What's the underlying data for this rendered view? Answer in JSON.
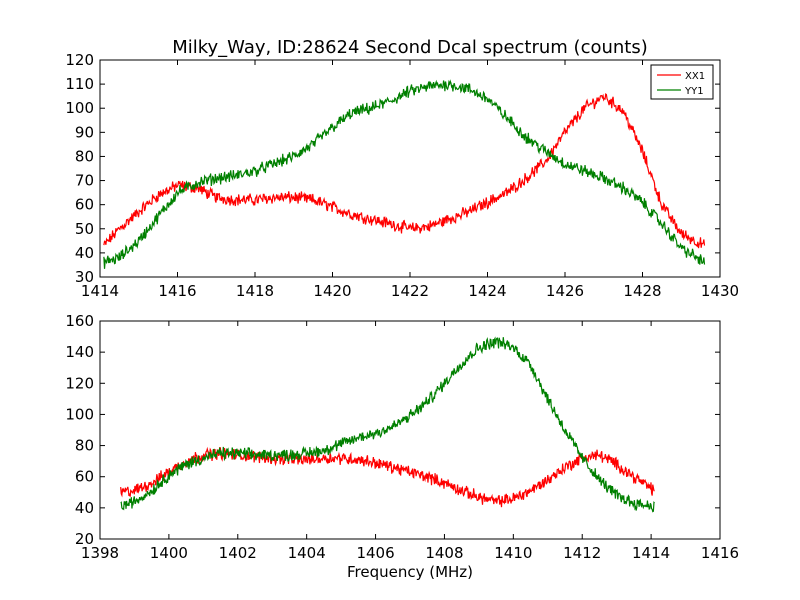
{
  "chart_data": [
    {
      "type": "line",
      "title": "Milky_Way, ID:28624 Second Dcal spectrum (counts)",
      "xlabel": "",
      "ylabel": "",
      "xlim": [
        1414,
        1430
      ],
      "ylim": [
        30,
        120
      ],
      "xticks": [
        1414,
        1416,
        1418,
        1420,
        1422,
        1424,
        1426,
        1428,
        1430
      ],
      "yticks": [
        30,
        40,
        50,
        60,
        70,
        80,
        90,
        100,
        110,
        120
      ],
      "grid": false,
      "legend": "top-right",
      "series": [
        {
          "name": "XX1",
          "color": "#ff0000",
          "x": [
            1414.1,
            1414.5,
            1415.0,
            1415.5,
            1416.0,
            1416.5,
            1417.0,
            1417.5,
            1418.0,
            1418.5,
            1419.0,
            1419.5,
            1420.0,
            1420.5,
            1421.0,
            1421.5,
            1422.0,
            1422.5,
            1423.0,
            1423.5,
            1424.0,
            1424.5,
            1425.0,
            1425.5,
            1426.0,
            1426.5,
            1427.0,
            1427.5,
            1428.0,
            1428.5,
            1429.0,
            1429.6
          ],
          "y": [
            43,
            50,
            57,
            64,
            68,
            67,
            63,
            62,
            62,
            63,
            63,
            62,
            59,
            56,
            54,
            52,
            50,
            51,
            54,
            57,
            61,
            65,
            71,
            78,
            90,
            100,
            105,
            99,
            82,
            60,
            48,
            43
          ]
        },
        {
          "name": "YY1",
          "color": "#008000",
          "x": [
            1414.1,
            1414.5,
            1415.0,
            1415.5,
            1416.0,
            1416.5,
            1417.0,
            1417.5,
            1418.0,
            1418.5,
            1419.0,
            1419.5,
            1420.0,
            1420.5,
            1421.0,
            1421.5,
            1422.0,
            1422.5,
            1423.0,
            1423.5,
            1424.0,
            1424.5,
            1425.0,
            1425.5,
            1426.0,
            1426.5,
            1427.0,
            1427.5,
            1428.0,
            1428.5,
            1429.0,
            1429.6
          ],
          "y": [
            36,
            38,
            45,
            55,
            65,
            69,
            71,
            72,
            74,
            77,
            80,
            85,
            92,
            98,
            100,
            103,
            107,
            109,
            110,
            108,
            104,
            96,
            88,
            82,
            77,
            74,
            71,
            67,
            61,
            52,
            42,
            36
          ]
        }
      ]
    },
    {
      "type": "line",
      "title": "",
      "xlabel": "Frequency (MHz)",
      "ylabel": "",
      "xlim": [
        1398,
        1416
      ],
      "ylim": [
        20,
        160
      ],
      "xticks": [
        1398,
        1400,
        1402,
        1404,
        1406,
        1408,
        1410,
        1412,
        1414,
        1416
      ],
      "yticks": [
        20,
        40,
        60,
        80,
        100,
        120,
        140,
        160
      ],
      "grid": false,
      "series": [
        {
          "name": "XX1",
          "color": "#ff0000",
          "x": [
            1398.6,
            1399.0,
            1399.5,
            1400.0,
            1400.5,
            1401.0,
            1401.5,
            1402.0,
            1402.5,
            1403.0,
            1403.5,
            1404.0,
            1404.5,
            1405.0,
            1405.5,
            1406.0,
            1406.5,
            1407.0,
            1407.5,
            1408.0,
            1408.5,
            1409.0,
            1409.5,
            1410.0,
            1410.5,
            1411.0,
            1411.5,
            1412.0,
            1412.5,
            1413.0,
            1413.5,
            1414.1
          ],
          "y": [
            50,
            51,
            56,
            63,
            70,
            74,
            75,
            74,
            73,
            72,
            71,
            71,
            72,
            72,
            71,
            69,
            66,
            63,
            60,
            56,
            51,
            47,
            44,
            46,
            51,
            58,
            66,
            72,
            74,
            68,
            60,
            51
          ]
        },
        {
          "name": "YY1",
          "color": "#008000",
          "x": [
            1398.6,
            1399.0,
            1399.5,
            1400.0,
            1400.5,
            1401.0,
            1401.5,
            1402.0,
            1402.5,
            1403.0,
            1403.5,
            1404.0,
            1404.5,
            1405.0,
            1405.5,
            1406.0,
            1406.5,
            1407.0,
            1407.5,
            1408.0,
            1408.5,
            1409.0,
            1409.5,
            1410.0,
            1410.5,
            1411.0,
            1411.5,
            1412.0,
            1412.5,
            1413.0,
            1413.5,
            1414.1
          ],
          "y": [
            41,
            44,
            51,
            61,
            68,
            72,
            75,
            75,
            74,
            74,
            74,
            75,
            77,
            81,
            85,
            88,
            92,
            99,
            108,
            120,
            133,
            143,
            147,
            143,
            132,
            110,
            90,
            72,
            58,
            48,
            43,
            41
          ]
        }
      ]
    }
  ]
}
